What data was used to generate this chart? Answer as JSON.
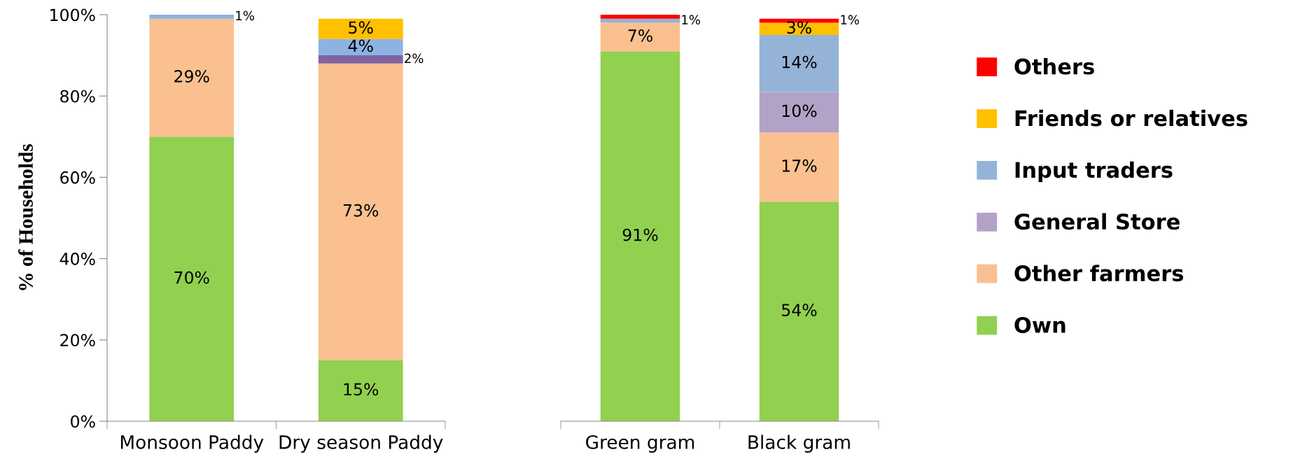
{
  "chart_data": [
    {
      "type": "bar",
      "stacked": true,
      "ylabel": "% of Households",
      "categories": [
        "Monsoon Paddy",
        "Dry season Paddy"
      ],
      "ylim": [
        0,
        100
      ],
      "yticks": [
        {
          "value": 0,
          "label": "0%"
        },
        {
          "value": 20,
          "label": "20%"
        },
        {
          "value": 40,
          "label": "40%"
        },
        {
          "value": 60,
          "label": "60%"
        },
        {
          "value": 80,
          "label": "80%"
        },
        {
          "value": 100,
          "label": "100%"
        }
      ],
      "grid": false,
      "legend": false,
      "series": [
        {
          "color": "#92d050",
          "values": [
            70,
            15
          ],
          "value_labels": [
            "70%",
            "15%"
          ]
        },
        {
          "color": "#fac090",
          "values": [
            29,
            73
          ],
          "value_labels": [
            "29%",
            "73%"
          ]
        },
        {
          "color": "#8064a2",
          "values": [
            null,
            2
          ],
          "value_labels": [
            null,
            "2%"
          ]
        },
        {
          "color": "#8db3e2",
          "values": [
            1,
            4
          ],
          "value_labels": [
            "1%",
            "4%"
          ]
        },
        {
          "color": "#ffc000",
          "values": [
            null,
            5
          ],
          "value_labels": [
            null,
            "5%"
          ]
        }
      ]
    },
    {
      "type": "bar",
      "stacked": true,
      "categories": [
        "Green gram",
        "Black gram"
      ],
      "ylim": [
        0,
        100
      ],
      "tick_labels": "x",
      "grid": false,
      "legend": "right",
      "series": [
        {
          "name": "Own",
          "color": "#92d050",
          "values": [
            91,
            54
          ],
          "value_labels": [
            "91%",
            "54%"
          ]
        },
        {
          "name": "Other farmers",
          "color": "#fac090",
          "values": [
            7,
            17
          ],
          "value_labels": [
            "7%",
            "17%"
          ]
        },
        {
          "name": "General Store",
          "color": "#b3a2c7",
          "values": [
            null,
            10
          ],
          "value_labels": [
            null,
            "10%"
          ]
        },
        {
          "name": "Input traders",
          "color": "#95b3d7",
          "values": [
            1,
            14
          ],
          "value_labels": [
            "1%",
            "14%"
          ]
        },
        {
          "name": "Friends or relatives",
          "color": "#ffc000",
          "values": [
            null,
            3
          ],
          "value_labels": [
            null,
            "3%"
          ]
        },
        {
          "name": "Others",
          "color": "#ff0000",
          "values": [
            1,
            1
          ],
          "value_labels": [
            null,
            "1%"
          ]
        }
      ]
    }
  ]
}
